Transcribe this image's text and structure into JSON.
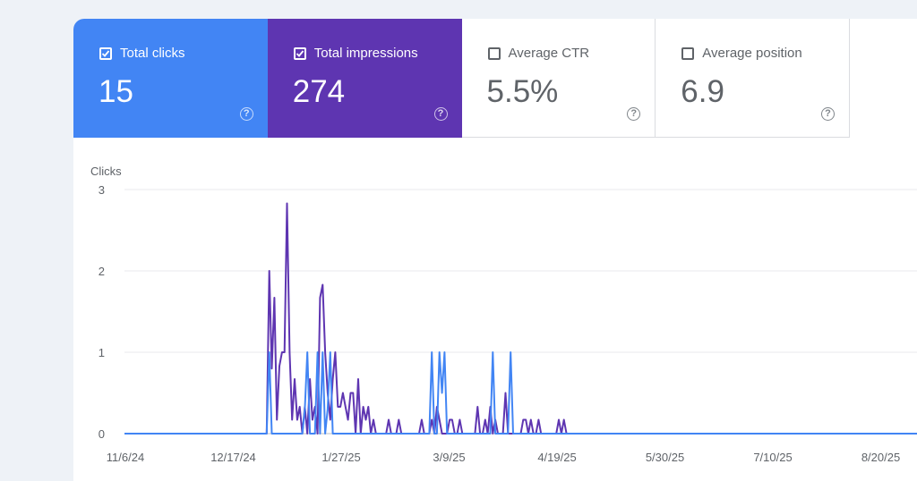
{
  "metrics": [
    {
      "label": "Total clicks",
      "value": "15",
      "checked": true,
      "color": "#4285f4"
    },
    {
      "label": "Total impressions",
      "value": "274",
      "checked": true,
      "color": "#5e35b1"
    },
    {
      "label": "Average CTR",
      "value": "5.5%",
      "checked": false,
      "color": "#ffffff"
    },
    {
      "label": "Average position",
      "value": "6.9",
      "checked": false,
      "color": "#ffffff"
    }
  ],
  "help_glyph": "?",
  "chart_data": {
    "type": "line",
    "ylabel": "Clicks",
    "ylim": [
      0,
      3
    ],
    "yticks": [
      "0",
      "1",
      "2",
      "3"
    ],
    "xticks": [
      "11/6/24",
      "12/17/24",
      "1/27/25",
      "3/9/25",
      "4/19/25",
      "5/30/25",
      "7/10/25",
      "8/20/25"
    ],
    "grid": true,
    "x_start": "2024-11-06",
    "x_end": "2025-09-14",
    "series": [
      {
        "name": "Total clicks",
        "color": "#4285f4",
        "points": [
          [
            "2024-11-06",
            0
          ],
          [
            "2025-01-01",
            0
          ],
          [
            "2025-01-02",
            1
          ],
          [
            "2025-01-03",
            0
          ],
          [
            "2025-01-15",
            0
          ],
          [
            "2025-01-16",
            0.3
          ],
          [
            "2025-01-17",
            1
          ],
          [
            "2025-01-18",
            0
          ],
          [
            "2025-01-20",
            0
          ],
          [
            "2025-01-21",
            1
          ],
          [
            "2025-01-22",
            0
          ],
          [
            "2025-01-23",
            1
          ],
          [
            "2025-01-24",
            0
          ],
          [
            "2025-01-25",
            0.3
          ],
          [
            "2025-01-26",
            1
          ],
          [
            "2025-01-27",
            0
          ],
          [
            "2025-03-06",
            0
          ],
          [
            "2025-03-07",
            1
          ],
          [
            "2025-03-08",
            0
          ],
          [
            "2025-03-09",
            0
          ],
          [
            "2025-03-10",
            1
          ],
          [
            "2025-03-11",
            0.5
          ],
          [
            "2025-03-12",
            1
          ],
          [
            "2025-03-13",
            0
          ],
          [
            "2025-03-30",
            0
          ],
          [
            "2025-03-31",
            1
          ],
          [
            "2025-04-01",
            0
          ],
          [
            "2025-04-06",
            0
          ],
          [
            "2025-04-07",
            1
          ],
          [
            "2025-04-08",
            0
          ],
          [
            "2025-09-14",
            0
          ]
        ]
      },
      {
        "name": "Total impressions",
        "color": "#5e35b1",
        "points": [
          [
            "2024-11-06",
            0
          ],
          [
            "2025-01-01",
            0
          ],
          [
            "2025-01-02",
            2
          ],
          [
            "2025-01-03",
            0.8
          ],
          [
            "2025-01-04",
            1.67
          ],
          [
            "2025-01-05",
            0.17
          ],
          [
            "2025-01-06",
            0.83
          ],
          [
            "2025-01-07",
            1
          ],
          [
            "2025-01-08",
            1
          ],
          [
            "2025-01-09",
            2.83
          ],
          [
            "2025-01-10",
            1
          ],
          [
            "2025-01-11",
            0.17
          ],
          [
            "2025-01-12",
            0.67
          ],
          [
            "2025-01-13",
            0.17
          ],
          [
            "2025-01-14",
            0.33
          ],
          [
            "2025-01-15",
            0
          ],
          [
            "2025-01-16",
            0.33
          ],
          [
            "2025-01-17",
            0
          ],
          [
            "2025-01-18",
            0.67
          ],
          [
            "2025-01-19",
            0.17
          ],
          [
            "2025-01-20",
            0.33
          ],
          [
            "2025-01-21",
            0
          ],
          [
            "2025-01-22",
            1.67
          ],
          [
            "2025-01-23",
            1.83
          ],
          [
            "2025-01-24",
            1
          ],
          [
            "2025-01-25",
            0.5
          ],
          [
            "2025-01-26",
            0.17
          ],
          [
            "2025-01-27",
            0.67
          ],
          [
            "2025-01-28",
            1
          ],
          [
            "2025-01-29",
            0.33
          ],
          [
            "2025-01-30",
            0.33
          ],
          [
            "2025-01-31",
            0.5
          ],
          [
            "2025-02-01",
            0.33
          ],
          [
            "2025-02-02",
            0.17
          ],
          [
            "2025-02-03",
            0.5
          ],
          [
            "2025-02-04",
            0.5
          ],
          [
            "2025-02-05",
            0
          ],
          [
            "2025-02-06",
            0.67
          ],
          [
            "2025-02-07",
            0
          ],
          [
            "2025-02-08",
            0.33
          ],
          [
            "2025-02-09",
            0.17
          ],
          [
            "2025-02-10",
            0.33
          ],
          [
            "2025-02-11",
            0
          ],
          [
            "2025-02-12",
            0.17
          ],
          [
            "2025-02-13",
            0
          ],
          [
            "2025-02-17",
            0
          ],
          [
            "2025-02-18",
            0.17
          ],
          [
            "2025-02-19",
            0
          ],
          [
            "2025-02-21",
            0
          ],
          [
            "2025-02-22",
            0.17
          ],
          [
            "2025-02-23",
            0
          ],
          [
            "2025-03-02",
            0
          ],
          [
            "2025-03-03",
            0.17
          ],
          [
            "2025-03-04",
            0
          ],
          [
            "2025-03-06",
            0
          ],
          [
            "2025-03-07",
            0.17
          ],
          [
            "2025-03-08",
            0
          ],
          [
            "2025-03-09",
            0.33
          ],
          [
            "2025-03-10",
            0.17
          ],
          [
            "2025-03-11",
            0
          ],
          [
            "2025-03-13",
            0
          ],
          [
            "2025-03-14",
            0.17
          ],
          [
            "2025-03-15",
            0.17
          ],
          [
            "2025-03-16",
            0
          ],
          [
            "2025-03-17",
            0
          ],
          [
            "2025-03-18",
            0.17
          ],
          [
            "2025-03-19",
            0
          ],
          [
            "2025-03-24",
            0
          ],
          [
            "2025-03-25",
            0.33
          ],
          [
            "2025-03-26",
            0
          ],
          [
            "2025-03-27",
            0
          ],
          [
            "2025-03-28",
            0.17
          ],
          [
            "2025-03-29",
            0
          ],
          [
            "2025-03-30",
            0.33
          ],
          [
            "2025-03-31",
            0
          ],
          [
            "2025-04-01",
            0.17
          ],
          [
            "2025-04-02",
            0
          ],
          [
            "2025-04-04",
            0
          ],
          [
            "2025-04-05",
            0.5
          ],
          [
            "2025-04-06",
            0
          ],
          [
            "2025-04-11",
            0
          ],
          [
            "2025-04-12",
            0.17
          ],
          [
            "2025-04-13",
            0.17
          ],
          [
            "2025-04-14",
            0
          ],
          [
            "2025-04-15",
            0.17
          ],
          [
            "2025-04-16",
            0
          ],
          [
            "2025-04-17",
            0
          ],
          [
            "2025-04-18",
            0.17
          ],
          [
            "2025-04-19",
            0
          ],
          [
            "2025-04-25",
            0
          ],
          [
            "2025-04-26",
            0.17
          ],
          [
            "2025-04-27",
            0
          ],
          [
            "2025-04-28",
            0.17
          ],
          [
            "2025-04-29",
            0
          ],
          [
            "2025-09-14",
            0
          ]
        ]
      }
    ]
  }
}
